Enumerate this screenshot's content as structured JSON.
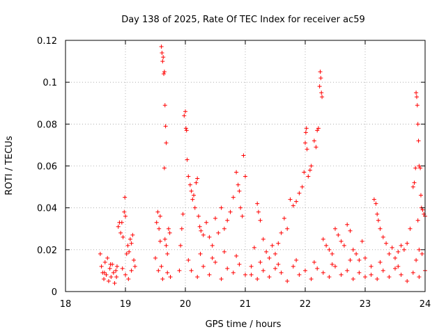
{
  "chart_data": {
    "type": "scatter",
    "title": "Day 138 of 2025, Rate Of TEC Index for receiver ac59",
    "xlabel": "GPS time / hours",
    "ylabel": "ROTI / TECUs",
    "xlim": [
      18,
      24
    ],
    "ylim": [
      0,
      0.12
    ],
    "x_ticks": [
      18,
      19,
      20,
      21,
      22,
      23,
      24
    ],
    "y_ticks": [
      0,
      0.02,
      0.04,
      0.06,
      0.08,
      0.1,
      0.12
    ],
    "x_tick_labels": [
      "18",
      "19",
      "20",
      "21",
      "22",
      "23",
      "24"
    ],
    "y_tick_labels": [
      "0",
      "0.02",
      "0.04",
      "0.06",
      "0.08",
      "0.1",
      "0.12"
    ],
    "grid": true,
    "marker": "+",
    "color": "#ff0000",
    "series": [
      {
        "name": "ROTI",
        "points": [
          [
            18.58,
            0.018
          ],
          [
            18.6,
            0.012
          ],
          [
            18.62,
            0.009
          ],
          [
            18.64,
            0.006
          ],
          [
            18.66,
            0.014
          ],
          [
            18.68,
            0.008
          ],
          [
            18.7,
            0.016
          ],
          [
            18.72,
            0.005
          ],
          [
            18.74,
            0.011
          ],
          [
            18.76,
            0.007
          ],
          [
            18.78,
            0.013
          ],
          [
            18.8,
            0.009
          ],
          [
            18.82,
            0.004
          ],
          [
            18.84,
            0.01
          ],
          [
            18.86,
            0.012
          ],
          [
            18.88,
            0.031
          ],
          [
            18.9,
            0.033
          ],
          [
            18.92,
            0.028
          ],
          [
            18.94,
            0.033
          ],
          [
            18.96,
            0.026
          ],
          [
            18.98,
            0.038
          ],
          [
            18.99,
            0.045
          ],
          [
            19.0,
            0.036
          ],
          [
            19.02,
            0.018
          ],
          [
            19.04,
            0.022
          ],
          [
            19.06,
            0.019
          ],
          [
            19.08,
            0.025
          ],
          [
            19.1,
            0.023
          ],
          [
            19.12,
            0.027
          ],
          [
            19.14,
            0.015
          ],
          [
            19.16,
            0.012
          ],
          [
            19.0,
            0.008
          ],
          [
            19.05,
            0.006
          ],
          [
            19.1,
            0.01
          ],
          [
            18.95,
            0.011
          ],
          [
            18.85,
            0.007
          ],
          [
            18.75,
            0.013
          ],
          [
            18.65,
            0.009
          ],
          [
            19.5,
            0.016
          ],
          [
            19.52,
            0.033
          ],
          [
            19.54,
            0.038
          ],
          [
            19.56,
            0.03
          ],
          [
            19.58,
            0.036
          ],
          [
            19.6,
            0.012
          ],
          [
            19.6,
            0.117
          ],
          [
            19.61,
            0.114
          ],
          [
            19.62,
            0.11
          ],
          [
            19.63,
            0.112
          ],
          [
            19.64,
            0.104
          ],
          [
            19.65,
            0.105
          ],
          [
            19.66,
            0.089
          ],
          [
            19.67,
            0.079
          ],
          [
            19.68,
            0.071
          ],
          [
            19.65,
            0.059
          ],
          [
            19.66,
            0.025
          ],
          [
            19.68,
            0.022
          ],
          [
            19.7,
            0.018
          ],
          [
            19.72,
            0.03
          ],
          [
            19.74,
            0.028
          ],
          [
            19.58,
            0.024
          ],
          [
            19.55,
            0.01
          ],
          [
            19.62,
            0.006
          ],
          [
            19.7,
            0.009
          ],
          [
            19.75,
            0.007
          ],
          [
            19.9,
            0.01
          ],
          [
            19.92,
            0.022
          ],
          [
            19.94,
            0.03
          ],
          [
            19.96,
            0.037
          ],
          [
            19.98,
            0.084
          ],
          [
            20.0,
            0.086
          ],
          [
            20.01,
            0.078
          ],
          [
            20.02,
            0.077
          ],
          [
            20.03,
            0.063
          ],
          [
            20.05,
            0.055
          ],
          [
            20.08,
            0.051
          ],
          [
            20.1,
            0.048
          ],
          [
            20.12,
            0.044
          ],
          [
            20.14,
            0.046
          ],
          [
            20.16,
            0.04
          ],
          [
            20.18,
            0.052
          ],
          [
            20.2,
            0.054
          ],
          [
            20.22,
            0.036
          ],
          [
            20.24,
            0.031
          ],
          [
            20.26,
            0.029
          ],
          [
            20.3,
            0.027
          ],
          [
            20.35,
            0.033
          ],
          [
            20.4,
            0.026
          ],
          [
            20.45,
            0.022
          ],
          [
            20.5,
            0.035
          ],
          [
            20.55,
            0.028
          ],
          [
            20.6,
            0.04
          ],
          [
            20.65,
            0.03
          ],
          [
            20.7,
            0.034
          ],
          [
            20.75,
            0.038
          ],
          [
            20.8,
            0.045
          ],
          [
            20.85,
            0.057
          ],
          [
            20.88,
            0.051
          ],
          [
            20.9,
            0.048
          ],
          [
            20.92,
            0.04
          ],
          [
            20.95,
            0.036
          ],
          [
            20.97,
            0.065
          ],
          [
            21.0,
            0.055
          ],
          [
            20.1,
            0.01
          ],
          [
            20.2,
            0.007
          ],
          [
            20.3,
            0.012
          ],
          [
            20.4,
            0.008
          ],
          [
            20.5,
            0.014
          ],
          [
            20.6,
            0.006
          ],
          [
            20.7,
            0.011
          ],
          [
            20.8,
            0.009
          ],
          [
            20.9,
            0.013
          ],
          [
            21.0,
            0.008
          ],
          [
            20.05,
            0.015
          ],
          [
            20.25,
            0.018
          ],
          [
            20.45,
            0.016
          ],
          [
            20.65,
            0.019
          ],
          [
            20.85,
            0.017
          ],
          [
            21.1,
            0.012
          ],
          [
            21.15,
            0.021
          ],
          [
            21.2,
            0.042
          ],
          [
            21.22,
            0.038
          ],
          [
            21.25,
            0.034
          ],
          [
            21.3,
            0.025
          ],
          [
            21.35,
            0.019
          ],
          [
            21.4,
            0.016
          ],
          [
            21.45,
            0.022
          ],
          [
            21.5,
            0.018
          ],
          [
            21.55,
            0.023
          ],
          [
            21.6,
            0.028
          ],
          [
            21.65,
            0.035
          ],
          [
            21.7,
            0.03
          ],
          [
            21.75,
            0.044
          ],
          [
            21.8,
            0.041
          ],
          [
            21.85,
            0.043
          ],
          [
            21.9,
            0.047
          ],
          [
            21.95,
            0.05
          ],
          [
            21.98,
            0.057
          ],
          [
            22.0,
            0.071
          ],
          [
            22.01,
            0.076
          ],
          [
            22.02,
            0.078
          ],
          [
            22.03,
            0.068
          ],
          [
            22.05,
            0.055
          ],
          [
            22.08,
            0.058
          ],
          [
            22.1,
            0.06
          ],
          [
            22.15,
            0.072
          ],
          [
            22.18,
            0.069
          ],
          [
            22.2,
            0.077
          ],
          [
            22.22,
            0.078
          ],
          [
            22.24,
            0.098
          ],
          [
            22.25,
            0.105
          ],
          [
            22.26,
            0.102
          ],
          [
            22.27,
            0.095
          ],
          [
            22.28,
            0.093
          ],
          [
            22.3,
            0.025
          ],
          [
            22.35,
            0.022
          ],
          [
            22.4,
            0.02
          ],
          [
            22.45,
            0.018
          ],
          [
            22.5,
            0.03
          ],
          [
            22.55,
            0.027
          ],
          [
            22.6,
            0.024
          ],
          [
            22.65,
            0.022
          ],
          [
            22.7,
            0.032
          ],
          [
            22.75,
            0.029
          ],
          [
            22.8,
            0.02
          ],
          [
            22.85,
            0.018
          ],
          [
            22.9,
            0.015
          ],
          [
            22.95,
            0.024
          ],
          [
            23.0,
            0.016
          ],
          [
            21.1,
            0.008
          ],
          [
            21.2,
            0.006
          ],
          [
            21.3,
            0.01
          ],
          [
            21.4,
            0.007
          ],
          [
            21.5,
            0.011
          ],
          [
            21.6,
            0.009
          ],
          [
            21.7,
            0.005
          ],
          [
            21.8,
            0.012
          ],
          [
            21.9,
            0.008
          ],
          [
            22.0,
            0.01
          ],
          [
            22.1,
            0.006
          ],
          [
            22.2,
            0.011
          ],
          [
            22.3,
            0.009
          ],
          [
            22.4,
            0.007
          ],
          [
            22.5,
            0.012
          ],
          [
            22.6,
            0.008
          ],
          [
            22.7,
            0.01
          ],
          [
            22.8,
            0.006
          ],
          [
            22.9,
            0.009
          ],
          [
            23.0,
            0.007
          ],
          [
            21.25,
            0.014
          ],
          [
            21.55,
            0.013
          ],
          [
            21.85,
            0.015
          ],
          [
            22.15,
            0.014
          ],
          [
            22.45,
            0.013
          ],
          [
            22.75,
            0.015
          ],
          [
            23.1,
            0.012
          ],
          [
            23.15,
            0.044
          ],
          [
            23.18,
            0.042
          ],
          [
            23.2,
            0.037
          ],
          [
            23.22,
            0.034
          ],
          [
            23.25,
            0.03
          ],
          [
            23.3,
            0.026
          ],
          [
            23.35,
            0.023
          ],
          [
            23.4,
            0.018
          ],
          [
            23.45,
            0.021
          ],
          [
            23.5,
            0.016
          ],
          [
            23.55,
            0.019
          ],
          [
            23.6,
            0.022
          ],
          [
            23.65,
            0.02
          ],
          [
            23.7,
            0.023
          ],
          [
            23.75,
            0.03
          ],
          [
            23.8,
            0.05
          ],
          [
            23.82,
            0.052
          ],
          [
            23.84,
            0.059
          ],
          [
            23.85,
            0.095
          ],
          [
            23.86,
            0.093
          ],
          [
            23.87,
            0.089
          ],
          [
            23.88,
            0.08
          ],
          [
            23.89,
            0.072
          ],
          [
            23.9,
            0.06
          ],
          [
            23.92,
            0.059
          ],
          [
            23.93,
            0.046
          ],
          [
            23.94,
            0.04
          ],
          [
            23.96,
            0.039
          ],
          [
            23.98,
            0.037
          ],
          [
            24.0,
            0.036
          ],
          [
            23.88,
            0.034
          ],
          [
            23.9,
            0.02
          ],
          [
            23.95,
            0.018
          ],
          [
            23.1,
            0.008
          ],
          [
            23.2,
            0.006
          ],
          [
            23.3,
            0.01
          ],
          [
            23.4,
            0.007
          ],
          [
            23.5,
            0.011
          ],
          [
            23.6,
            0.008
          ],
          [
            23.7,
            0.005
          ],
          [
            23.8,
            0.009
          ],
          [
            23.9,
            0.007
          ],
          [
            24.0,
            0.01
          ],
          [
            23.25,
            0.014
          ],
          [
            23.55,
            0.012
          ],
          [
            23.85,
            0.015
          ]
        ]
      }
    ]
  }
}
